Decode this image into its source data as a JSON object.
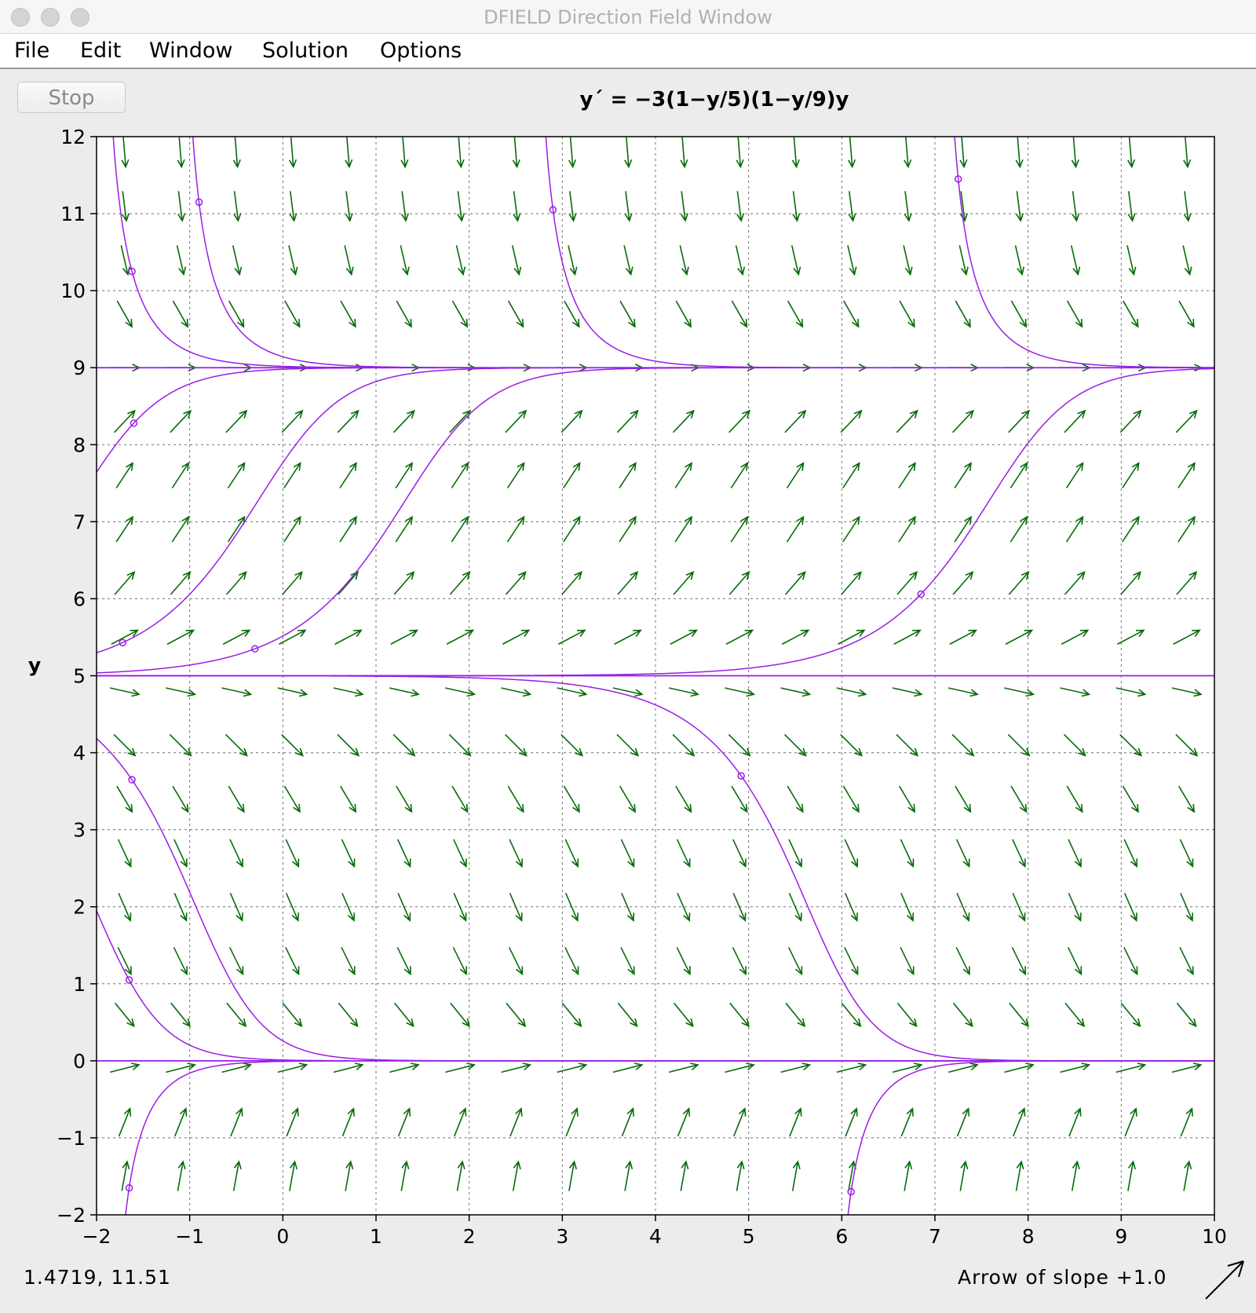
{
  "window": {
    "title": "DFIELD Direction Field Window"
  },
  "menubar": {
    "items": [
      {
        "label": "File"
      },
      {
        "label": "Edit"
      },
      {
        "label": "Window"
      },
      {
        "label": "Solution"
      },
      {
        "label": "Options"
      }
    ]
  },
  "toolbar": {
    "stop_label": "Stop",
    "equation": "y´ = −3(1−y/5)(1−y/9)y"
  },
  "status": {
    "cursor_coords": "1.4719,  11.51",
    "slope_label": "Arrow of slope +1.0",
    "slope_icon": "diagonal-arrow-icon"
  },
  "colors": {
    "field_arrow": "#0a6b0a",
    "solution_curve": "#9a1ee6",
    "grid": "#707070"
  },
  "chart_data": {
    "type": "direction-field",
    "title": "y´ = −3(1−y/5)(1−y/9)y",
    "xlabel": "",
    "ylabel": "y",
    "xlim": [
      -2,
      10
    ],
    "ylim": [
      -2,
      12
    ],
    "x_ticks": [
      "−2",
      "−1",
      "0",
      "1",
      "2",
      "3",
      "4",
      "5",
      "6",
      "7",
      "8",
      "9",
      "10"
    ],
    "y_ticks": [
      "−2",
      "−1",
      "0",
      "1",
      "2",
      "3",
      "4",
      "5",
      "6",
      "7",
      "8",
      "9",
      "10",
      "11",
      "12"
    ],
    "grid": true,
    "field_function": "-3(1-y/5)(1-y/9)y",
    "arrow_grid": {
      "x_start": -1.7,
      "x_step": 0.6,
      "x_count": 20,
      "y_start": -1.5,
      "y_step": 0.7,
      "y_count": 20
    },
    "equilibria": [
      0,
      5,
      9
    ],
    "initial_points": [
      {
        "x": -1.62,
        "y": 10.25
      },
      {
        "x": -0.9,
        "y": 11.15
      },
      {
        "x": 2.9,
        "y": 11.05
      },
      {
        "x": 7.25,
        "y": 11.45
      },
      {
        "x": -1.6,
        "y": 8.28
      },
      {
        "x": -1.72,
        "y": 5.43
      },
      {
        "x": -0.3,
        "y": 5.35
      },
      {
        "x": 6.85,
        "y": 6.06
      },
      {
        "x": -1.62,
        "y": 3.65
      },
      {
        "x": 4.92,
        "y": 3.7
      },
      {
        "x": -1.65,
        "y": 1.05
      },
      {
        "x": -1.65,
        "y": -1.65
      },
      {
        "x": 6.1,
        "y": -1.7
      }
    ]
  }
}
